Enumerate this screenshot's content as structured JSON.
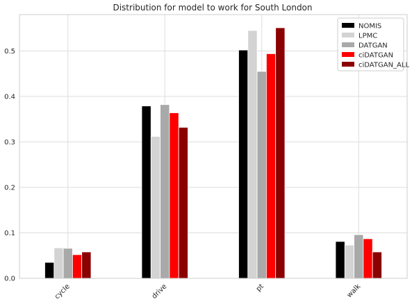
{
  "chart_data": {
    "type": "bar",
    "title": "Distribution for model to work for South London",
    "xlabel": "",
    "ylabel": "",
    "categories": [
      "cycle",
      "drive",
      "pt",
      "walk"
    ],
    "ylim": [
      0,
      0.58
    ],
    "yticks": [
      "0.0",
      "0.1",
      "0.2",
      "0.3",
      "0.4",
      "0.5"
    ],
    "grid": true,
    "legend_position": "top-right",
    "series": [
      {
        "name": "NOMIS",
        "color": "#000000",
        "values": [
          0.035,
          0.379,
          0.502,
          0.081
        ]
      },
      {
        "name": "LPMC",
        "color": "#d3d3d3",
        "values": [
          0.067,
          0.312,
          0.545,
          0.073
        ]
      },
      {
        "name": "DATGAN",
        "color": "#a9a9a9",
        "values": [
          0.066,
          0.382,
          0.455,
          0.096
        ]
      },
      {
        "name": "ciDATGAN",
        "color": "#ff0000",
        "values": [
          0.052,
          0.364,
          0.494,
          0.087
        ]
      },
      {
        "name": "ciDATGAN_ALL",
        "color": "#8b0000",
        "values": [
          0.058,
          0.332,
          0.551,
          0.058
        ]
      }
    ]
  }
}
